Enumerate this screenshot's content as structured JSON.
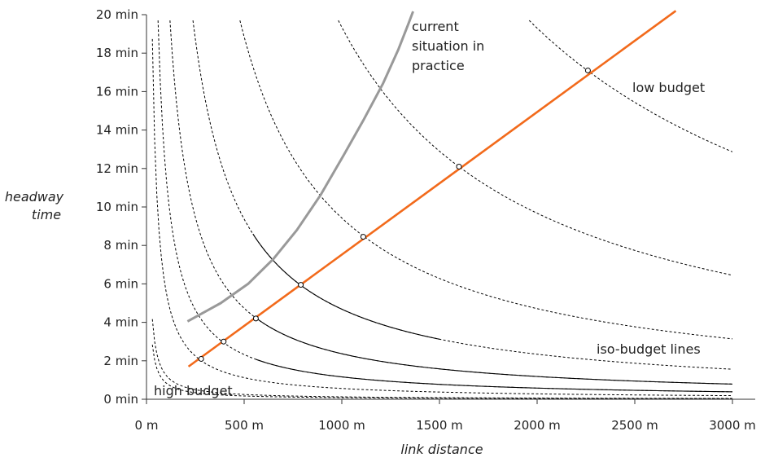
{
  "chart_data": {
    "type": "line",
    "xlabel": "link distance",
    "ylabel": [
      "headway",
      "time"
    ],
    "xlim": [
      0,
      3000
    ],
    "ylim": [
      0,
      20
    ],
    "x_ticks": [
      {
        "value": 0,
        "label": "0 m"
      },
      {
        "value": 500,
        "label": "500 m"
      },
      {
        "value": 1000,
        "label": "1000 m"
      },
      {
        "value": 1500,
        "label": "1500 m"
      },
      {
        "value": 2000,
        "label": "2000 m"
      },
      {
        "value": 2500,
        "label": "2500 m"
      },
      {
        "value": 3000,
        "label": "3000 m"
      }
    ],
    "y_ticks": [
      {
        "value": 0,
        "label": "0 min"
      },
      {
        "value": 2,
        "label": "2 min"
      },
      {
        "value": 4,
        "label": "4 min"
      },
      {
        "value": 6,
        "label": "6 min"
      },
      {
        "value": 8,
        "label": "8 min"
      },
      {
        "value": 10,
        "label": "10 min"
      },
      {
        "value": 12,
        "label": "12 min"
      },
      {
        "value": 14,
        "label": "14 min"
      },
      {
        "value": 16,
        "label": "16 min"
      },
      {
        "value": 18,
        "label": "18 min"
      },
      {
        "value": 20,
        "label": "20 min"
      }
    ],
    "grid": false,
    "iso_budget_curves": [
      {
        "k": 85,
        "solid_range": null
      },
      {
        "k": 125,
        "solid_range": null
      },
      {
        "k": 562,
        "solid_range": null
      },
      {
        "k": 1163,
        "solid_range": [
          560,
          3000
        ]
      },
      {
        "k": 2368,
        "solid_range": [
          560,
          3000
        ]
      },
      {
        "k": 4685,
        "solid_range": [
          545,
          1500
        ]
      },
      {
        "k": 9425,
        "solid_range": null
      },
      {
        "k": 19350,
        "solid_range": null
      },
      {
        "k": 38600,
        "solid_range": null
      }
    ],
    "optimum_line": {
      "color": "#f26a1b",
      "points": [
        [
          215,
          1.7
        ],
        [
          2710,
          20.2
        ]
      ],
      "markers": [
        [
          280,
          2.1
        ],
        [
          395,
          3.0
        ],
        [
          560,
          4.2
        ],
        [
          790,
          5.95
        ],
        [
          1110,
          8.45
        ],
        [
          1600,
          12.1
        ],
        [
          2260,
          17.1
        ]
      ]
    },
    "current_practice_curve": {
      "color": "#999999",
      "points": [
        [
          210,
          4.05
        ],
        [
          380,
          5.0
        ],
        [
          520,
          6.0
        ],
        [
          650,
          7.3
        ],
        [
          770,
          8.8
        ],
        [
          890,
          10.6
        ],
        [
          1010,
          12.7
        ],
        [
          1110,
          14.5
        ],
        [
          1210,
          16.4
        ],
        [
          1290,
          18.2
        ],
        [
          1340,
          19.5
        ],
        [
          1365,
          20.5
        ]
      ]
    },
    "annotations": {
      "current": [
        "current",
        "situation in",
        "practice"
      ],
      "low_budget": "low budget",
      "iso_budget": "iso-budget lines",
      "high_budget": "high budget"
    }
  }
}
